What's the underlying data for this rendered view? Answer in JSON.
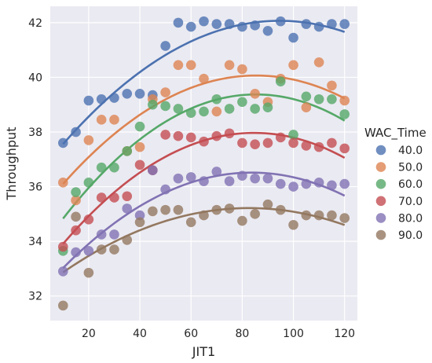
{
  "chart_data": {
    "type": "scatter",
    "xlabel": "JIT1",
    "ylabel": "Throughput",
    "xlim": [
      5,
      125
    ],
    "ylim": [
      31.1,
      42.6
    ],
    "xticks": [
      20,
      40,
      60,
      80,
      100,
      120
    ],
    "yticks": [
      32,
      34,
      36,
      38,
      40,
      42
    ],
    "grid": true,
    "legend_position": "right",
    "legend_title": "WAC_Time",
    "fit": "quadratic",
    "x": [
      10,
      15,
      20,
      25,
      30,
      35,
      40,
      45,
      50,
      55,
      60,
      65,
      70,
      75,
      80,
      85,
      90,
      95,
      100,
      105,
      110,
      115,
      120
    ],
    "series": [
      {
        "name": "40.0",
        "color": "#4c72b0",
        "values": [
          37.6,
          38.0,
          39.15,
          39.2,
          39.25,
          39.4,
          39.4,
          39.35,
          41.15,
          42.0,
          41.85,
          42.05,
          41.95,
          41.95,
          41.85,
          41.9,
          41.7,
          42.05,
          41.45,
          41.95,
          41.85,
          41.95,
          41.95
        ]
      },
      {
        "name": "50.0",
        "color": "#dd8452",
        "values": [
          36.15,
          35.5,
          37.7,
          38.45,
          38.45,
          37.3,
          37.45,
          39.2,
          39.45,
          40.45,
          40.45,
          39.95,
          38.75,
          40.45,
          40.3,
          39.4,
          39.1,
          39.95,
          40.45,
          38.9,
          40.55,
          39.7,
          39.15
        ]
      },
      {
        "name": "60.0",
        "color": "#55a868",
        "values": [
          33.65,
          35.8,
          36.15,
          36.7,
          36.7,
          37.3,
          38.2,
          39.0,
          38.95,
          38.85,
          38.7,
          38.75,
          39.2,
          38.85,
          39.1,
          38.85,
          38.9,
          39.85,
          37.9,
          39.3,
          39.2,
          39.2,
          38.65
        ]
      },
      {
        "name": "70.0",
        "color": "#c44e52",
        "values": [
          33.8,
          34.4,
          34.8,
          35.6,
          35.6,
          35.65,
          36.8,
          36.6,
          37.9,
          37.85,
          37.8,
          37.65,
          37.85,
          37.95,
          37.6,
          37.55,
          37.6,
          37.8,
          37.6,
          37.5,
          37.45,
          37.6,
          37.4
        ]
      },
      {
        "name": "80.0",
        "color": "#8172b3",
        "values": [
          32.9,
          33.6,
          33.65,
          34.25,
          34.25,
          35.2,
          34.95,
          36.6,
          35.9,
          36.3,
          36.35,
          36.2,
          36.55,
          36.2,
          36.4,
          36.3,
          36.3,
          36.1,
          36.0,
          36.1,
          36.15,
          36.05,
          36.1
        ]
      },
      {
        "name": "90.0",
        "color": "#937860",
        "values": [
          31.65,
          34.9,
          32.85,
          33.7,
          33.7,
          34.05,
          34.7,
          35.1,
          35.15,
          35.15,
          34.7,
          34.95,
          35.15,
          35.2,
          34.75,
          35.0,
          35.35,
          35.15,
          34.6,
          34.95,
          34.95,
          34.95,
          34.85
        ]
      }
    ]
  }
}
